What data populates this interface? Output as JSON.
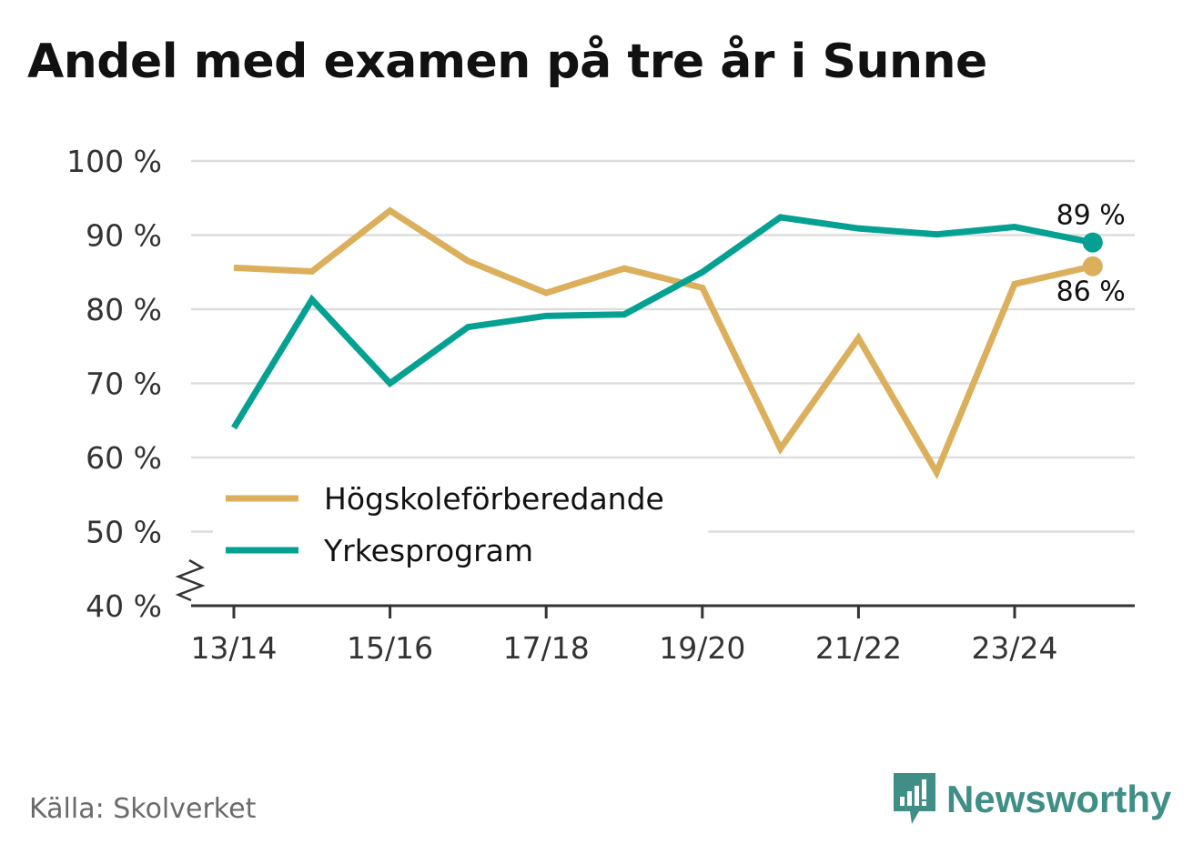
{
  "title": "Andel med examen på tre år i Sunne",
  "source": "Källa: Skolverket",
  "brand": {
    "name": "Newsworthy",
    "icon": "newsworthy-logo-icon"
  },
  "colors": {
    "hogskole": "#dbaf5c",
    "yrkes": "#04a193",
    "grid": "#dddddd",
    "axis": "#333333",
    "text": "#333333"
  },
  "chart_data": {
    "type": "line",
    "title": "Andel med examen på tre år i Sunne",
    "x": [
      "13/14",
      "14/15",
      "15/16",
      "16/17",
      "17/18",
      "18/19",
      "19/20",
      "20/21",
      "21/22",
      "22/23",
      "23/24",
      "24/25"
    ],
    "xtick_labels": [
      "13/14",
      "15/16",
      "17/18",
      "19/20",
      "21/22",
      "23/24"
    ],
    "ylim": [
      40,
      100
    ],
    "yticks": [
      40,
      50,
      60,
      70,
      80,
      90,
      100
    ],
    "ytick_labels": [
      "40 %",
      "50 %",
      "60 %",
      "70 %",
      "80 %",
      "90 %",
      "100 %"
    ],
    "xlabel": "",
    "ylabel": "",
    "grid": true,
    "legend": "bottom-left",
    "series": [
      {
        "name": "Högskoleförberedande",
        "color": "#dbaf5c",
        "values": [
          85.6,
          85.1,
          93.3,
          86.5,
          82.2,
          85.5,
          82.9,
          61.2,
          76.1,
          58.0,
          83.4,
          85.8
        ],
        "end_label": "86 %"
      },
      {
        "name": "Yrkesprogram",
        "color": "#04a193",
        "values": [
          64.0,
          81.3,
          70.0,
          77.6,
          79.1,
          79.3,
          85.0,
          92.4,
          90.9,
          90.1,
          91.1,
          89.0
        ],
        "end_label": "89 %"
      }
    ]
  }
}
